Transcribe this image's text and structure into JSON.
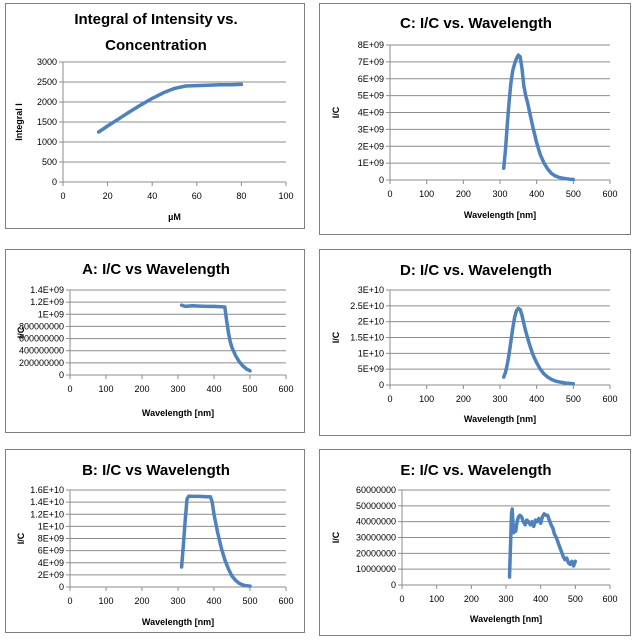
{
  "chart_data": [
    {
      "id": "c0",
      "type": "line",
      "title": [
        "Integral of Intensity vs.",
        "Concentration"
      ],
      "xlabel": "µM",
      "ylabel": "Integral I",
      "xlim": [
        0,
        100
      ],
      "ylim": [
        0,
        3000
      ],
      "xticks": [
        "0",
        "20",
        "40",
        "60",
        "80",
        "100"
      ],
      "yticks": [
        "0",
        "500",
        "1000",
        "1500",
        "2000",
        "2500",
        "3000"
      ],
      "line_color": "#4F81BD",
      "series": [
        {
          "x": [
            16,
            20,
            25,
            30,
            35,
            40,
            45,
            50,
            55,
            60,
            65,
            70,
            75,
            80
          ],
          "y": [
            1250,
            1400,
            1580,
            1760,
            1930,
            2090,
            2230,
            2340,
            2400,
            2410,
            2420,
            2430,
            2430,
            2440
          ]
        }
      ]
    },
    {
      "id": "c1",
      "type": "line",
      "title": [
        "C: I/C vs. Wavelength"
      ],
      "xlabel": "Wavelength [nm]",
      "ylabel": "I/C",
      "xlim": [
        0,
        600
      ],
      "ylim": [
        0,
        8000000000
      ],
      "xticks": [
        "0",
        "100",
        "200",
        "300",
        "400",
        "500",
        "600"
      ],
      "yticks": [
        "0",
        "1E+09",
        "2E+09",
        "3E+09",
        "4E+09",
        "5E+09",
        "6E+09",
        "7E+09",
        "8E+09"
      ],
      "line_color": "#4F81BD",
      "series": [
        {
          "x": [
            310,
            315,
            320,
            325,
            330,
            335,
            340,
            345,
            350,
            355,
            360,
            365,
            370,
            375,
            380,
            390,
            400,
            410,
            420,
            430,
            440,
            450,
            460,
            470,
            480,
            490,
            500
          ],
          "y": [
            700000000,
            1800000000,
            3300000000,
            4700000000,
            5800000000,
            6500000000,
            6900000000,
            7200000000,
            7400000000,
            7300000000,
            6600000000,
            5600000000,
            5000000000,
            4600000000,
            4100000000,
            3100000000,
            2200000000,
            1500000000,
            1000000000,
            650000000,
            400000000,
            250000000,
            160000000,
            110000000,
            80000000,
            50000000,
            30000000
          ]
        }
      ]
    },
    {
      "id": "c2",
      "type": "line",
      "title": [
        "A: I/C vs Wavelength"
      ],
      "xlabel": "Wavelength [nm]",
      "ylabel": "I/C",
      "xlim": [
        0,
        600
      ],
      "ylim": [
        0,
        1400000000
      ],
      "xticks": [
        "0",
        "100",
        "200",
        "300",
        "400",
        "500",
        "600"
      ],
      "yticks": [
        "0",
        "200000000",
        "400000000",
        "600000000",
        "800000000",
        "1E+09",
        "1.2E+09",
        "1.4E+09"
      ],
      "line_color": "#4F81BD",
      "series": [
        {
          "x": [
            310,
            320,
            340,
            360,
            380,
            400,
            420,
            430,
            435,
            440,
            445,
            450,
            460,
            470,
            480,
            490,
            500
          ],
          "y": [
            1150000000,
            1130000000,
            1140000000,
            1135000000,
            1130000000,
            1130000000,
            1125000000,
            1120000000,
            900000000,
            700000000,
            550000000,
            450000000,
            320000000,
            220000000,
            150000000,
            100000000,
            70000000
          ]
        }
      ]
    },
    {
      "id": "c3",
      "type": "line",
      "title": [
        "D: I/C vs. Wavelength"
      ],
      "xlabel": "Wavelength [nm]",
      "ylabel": "I/C",
      "xlim": [
        0,
        600
      ],
      "ylim": [
        0,
        30000000000
      ],
      "xticks": [
        "0",
        "100",
        "200",
        "300",
        "400",
        "500",
        "600"
      ],
      "yticks": [
        "0",
        "5E+09",
        "1E+10",
        "1.5E+10",
        "2E+10",
        "2.5E+10",
        "3E+10"
      ],
      "line_color": "#4F81BD",
      "series": [
        {
          "x": [
            310,
            315,
            320,
            325,
            330,
            335,
            340,
            345,
            350,
            355,
            360,
            365,
            370,
            380,
            390,
            400,
            410,
            420,
            430,
            440,
            450,
            460,
            470,
            480,
            490,
            500
          ],
          "y": [
            2500000000,
            4000000000,
            6500000000,
            10000000000,
            14000000000,
            18000000000,
            21500000000,
            23500000000,
            24200000000,
            23800000000,
            22000000000,
            19500000000,
            17000000000,
            13000000000,
            9500000000,
            7000000000,
            5000000000,
            3500000000,
            2500000000,
            1800000000,
            1300000000,
            1000000000,
            800000000,
            600000000,
            500000000,
            400000000
          ]
        }
      ]
    },
    {
      "id": "c4",
      "type": "line",
      "title": [
        "B: I/C vs Wavelength"
      ],
      "xlabel": "Wavelength [nm]",
      "ylabel": "I/C",
      "xlim": [
        0,
        600
      ],
      "ylim": [
        0,
        16000000000
      ],
      "xticks": [
        "0",
        "100",
        "200",
        "300",
        "400",
        "500",
        "600"
      ],
      "yticks": [
        "0",
        "2E+09",
        "4E+09",
        "6E+09",
        "8E+09",
        "1E+10",
        "1.2E+10",
        "1.4E+10",
        "1.6E+10"
      ],
      "line_color": "#4F81BD",
      "series": [
        {
          "x": [
            310,
            315,
            320,
            325,
            330,
            340,
            360,
            380,
            390,
            395,
            400,
            410,
            420,
            430,
            440,
            450,
            460,
            470,
            480,
            490,
            500
          ],
          "y": [
            3300000000,
            7000000000,
            11000000000,
            14500000000,
            15000000000,
            14950000000,
            14950000000,
            14900000000,
            14900000000,
            14000000000,
            12000000000,
            9000000000,
            6500000000,
            4500000000,
            3000000000,
            1800000000,
            1100000000,
            600000000,
            350000000,
            200000000,
            150000000
          ]
        }
      ]
    },
    {
      "id": "c5",
      "type": "line",
      "title": [
        "E: I/C vs. Wavelength"
      ],
      "xlabel": "Wavelength [nm]",
      "ylabel": "I/C",
      "xlim": [
        0,
        600
      ],
      "ylim": [
        0,
        60000000
      ],
      "xticks": [
        "0",
        "100",
        "200",
        "300",
        "400",
        "500",
        "600"
      ],
      "yticks": [
        "0",
        "10000000",
        "20000000",
        "30000000",
        "40000000",
        "50000000",
        "60000000"
      ],
      "line_color": "#4F81BD",
      "series": [
        {
          "x": [
            310,
            313,
            316,
            318,
            320,
            322,
            325,
            328,
            332,
            336,
            340,
            345,
            350,
            355,
            360,
            365,
            370,
            375,
            380,
            385,
            390,
            395,
            400,
            405,
            410,
            415,
            420,
            425,
            430,
            435,
            440,
            445,
            450,
            455,
            460,
            465,
            470,
            475,
            480,
            485,
            490,
            495,
            500
          ],
          "y": [
            5000000,
            25000000,
            45000000,
            48000000,
            40000000,
            33000000,
            37000000,
            34000000,
            40000000,
            43000000,
            44000000,
            43000000,
            40000000,
            38000000,
            41000000,
            40000000,
            38000000,
            40000000,
            37000000,
            41000000,
            40000000,
            42000000,
            39000000,
            43000000,
            45000000,
            44000000,
            44000000,
            41000000,
            38000000,
            36000000,
            32000000,
            30000000,
            27000000,
            24000000,
            21000000,
            18000000,
            16000000,
            17000000,
            14000000,
            13000000,
            15000000,
            12000000,
            15000000
          ]
        }
      ]
    }
  ]
}
